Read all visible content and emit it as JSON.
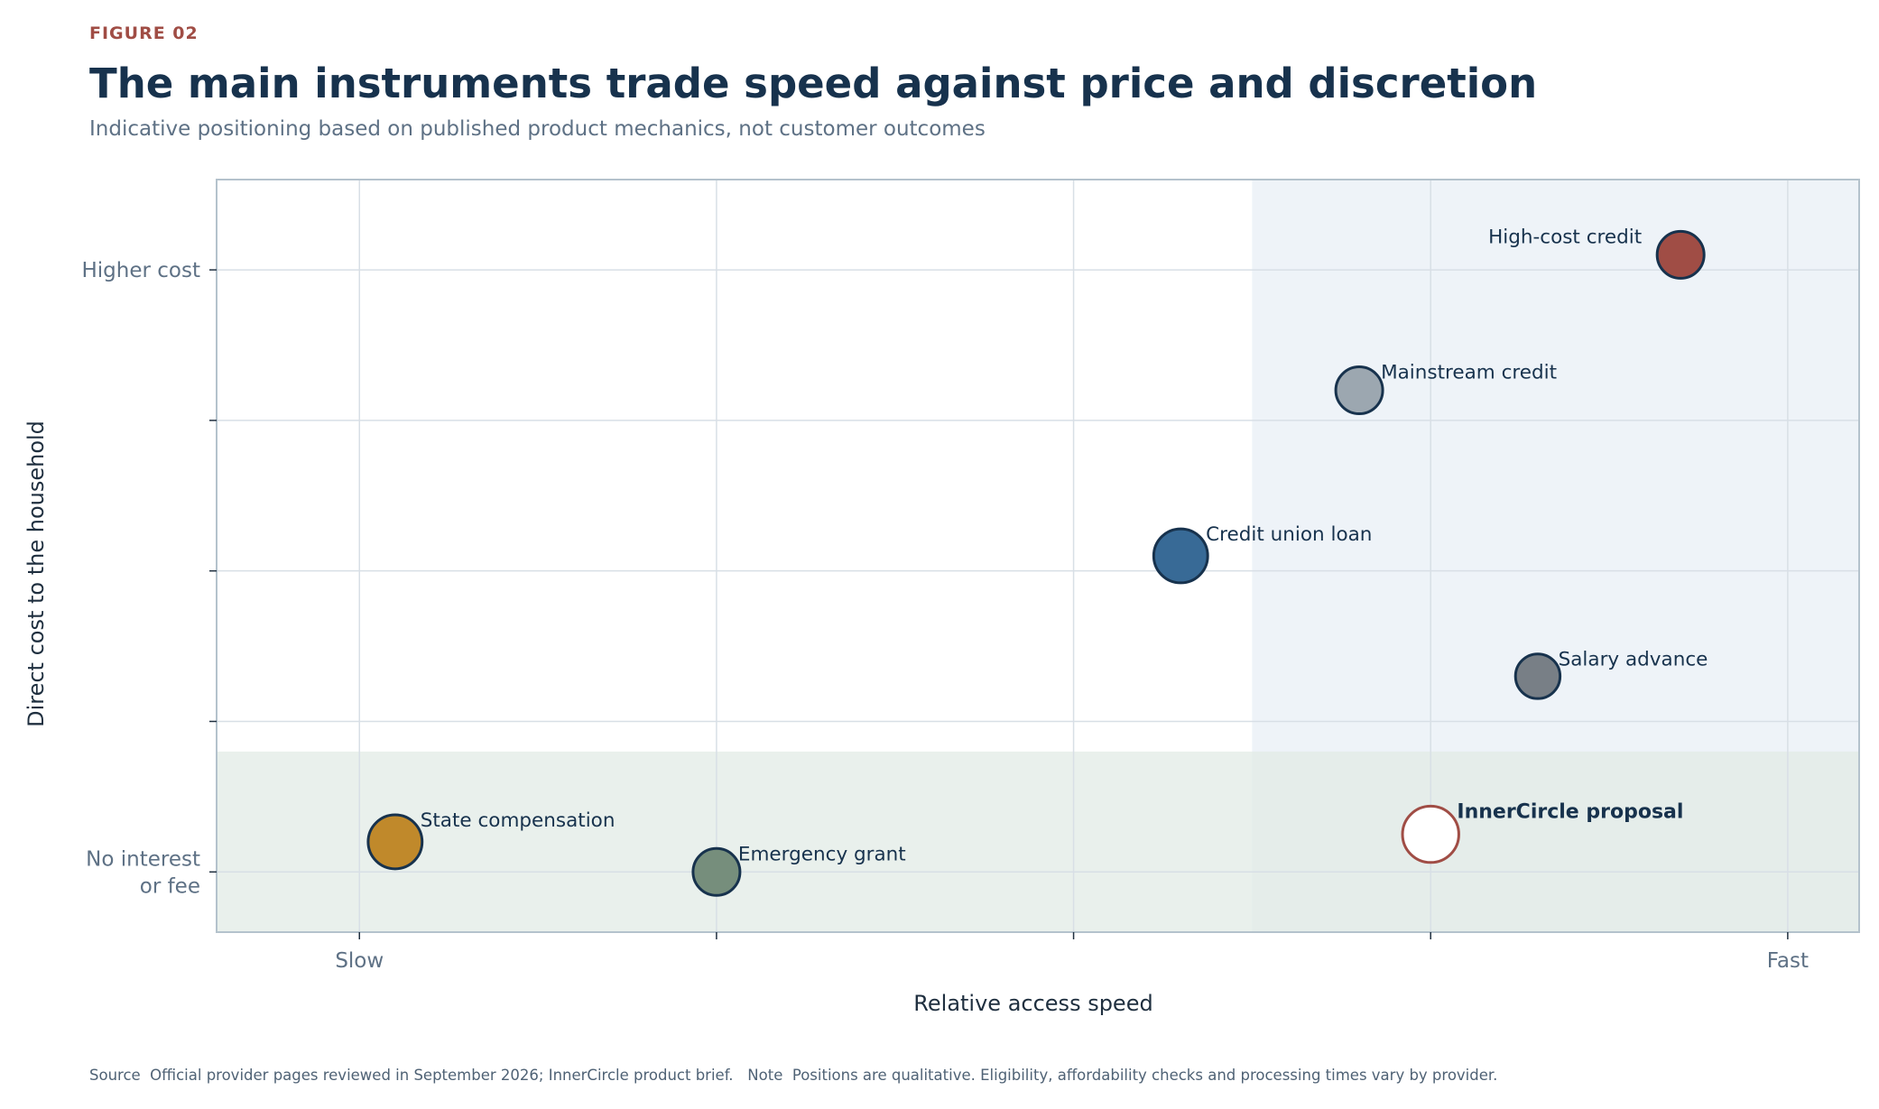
{
  "header": {
    "eyebrow": "FIGURE 02",
    "title": "The main instruments trade speed against price and discretion",
    "subtitle": "Indicative positioning based on published product mechanics, not customer outcomes"
  },
  "footer": {
    "text": "Source  Official provider pages reviewed in September 2026; InnerCircle product brief.   Note  Positions are qualitative. Eligibility, affordability checks and processing times vary by provider."
  },
  "chart_data": {
    "type": "scatter",
    "xlabel": "Relative access speed",
    "ylabel": "Direct cost to the household",
    "xlim": [
      -0.4,
      4.2
    ],
    "ylim": [
      -0.4,
      4.6
    ],
    "x_ticks": [
      {
        "value": 0,
        "label": "Slow"
      },
      {
        "value": 1,
        "label": ""
      },
      {
        "value": 2,
        "label": ""
      },
      {
        "value": 3,
        "label": ""
      },
      {
        "value": 4,
        "label": "Fast"
      }
    ],
    "y_ticks": [
      {
        "value": 0,
        "label": [
          "No interest",
          "or fee"
        ]
      },
      {
        "value": 1,
        "label": [
          ""
        ]
      },
      {
        "value": 2,
        "label": [
          ""
        ]
      },
      {
        "value": 3,
        "label": [
          ""
        ]
      },
      {
        "value": 4,
        "label": [
          "Higher cost"
        ]
      }
    ],
    "grid": true,
    "shaded_regions": [
      {
        "x_range": [
          2.5,
          4.2
        ],
        "y_range": [
          -0.4,
          4.6
        ],
        "color": "#eef3f8"
      },
      {
        "x_range": [
          -0.4,
          4.2
        ],
        "y_range": [
          -0.4,
          0.8
        ],
        "color": "#e2ebe6"
      }
    ],
    "points": [
      {
        "name": "State compensation",
        "x": 0.1,
        "y": 0.2,
        "size": 1.15,
        "fill": "#c0892b",
        "stroke": "#17324d",
        "bold": false
      },
      {
        "name": "Emergency grant",
        "x": 1.0,
        "y": 0.0,
        "size": 1.0,
        "fill": "#768e7c",
        "stroke": "#17324d",
        "bold": false
      },
      {
        "name": "Credit union loan",
        "x": 2.3,
        "y": 2.1,
        "size": 1.15,
        "fill": "#386a96",
        "stroke": "#17324d",
        "bold": false
      },
      {
        "name": "Mainstream credit",
        "x": 2.8,
        "y": 3.2,
        "size": 1.0,
        "fill": "#9ca7b0",
        "stroke": "#17324d",
        "bold": false
      },
      {
        "name": "Salary advance",
        "x": 3.3,
        "y": 1.3,
        "size": 0.95,
        "fill": "#787f86",
        "stroke": "#17324d",
        "bold": false
      },
      {
        "name": "High-cost credit",
        "x": 3.7,
        "y": 4.1,
        "size": 1.0,
        "fill": "#a04d45",
        "stroke": "#17324d",
        "bold": false,
        "label_side": "left"
      },
      {
        "name": "InnerCircle proposal",
        "x": 3.0,
        "y": 0.25,
        "size": 1.2,
        "fill": "#ffffff",
        "stroke": "#a04d45",
        "bold": true
      }
    ]
  }
}
